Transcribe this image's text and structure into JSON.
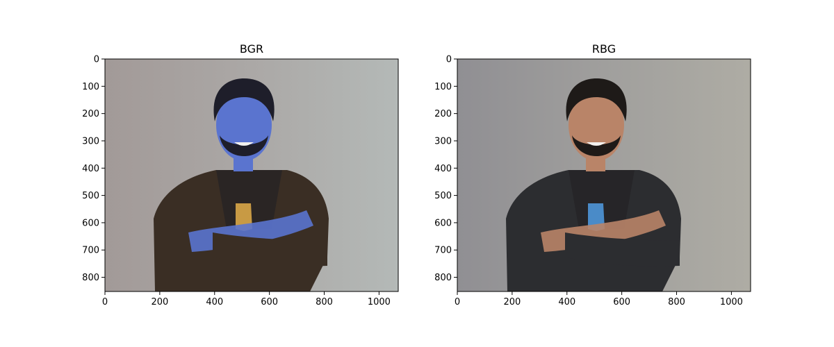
{
  "figure": {
    "panels": [
      {
        "title": "BGR",
        "image": "bgr-channel-swapped-photo",
        "x_ticks": [
          "0",
          "200",
          "400",
          "600",
          "800",
          "1000"
        ],
        "y_ticks": [
          "0",
          "100",
          "200",
          "300",
          "400",
          "500",
          "600",
          "700",
          "800"
        ],
        "x_range": [
          0,
          1070
        ],
        "y_range": [
          0,
          852
        ],
        "colors": {
          "background": "#a8aaa6",
          "skin": "#5a74cf",
          "hair": "#1e1e2a",
          "jacket": "#3a2e24",
          "shirt": "#2a2524",
          "logo": "#c89a44"
        }
      },
      {
        "title": "RBG",
        "image": "rgb-photo",
        "x_ticks": [
          "0",
          "200",
          "400",
          "600",
          "800",
          "1000"
        ],
        "y_ticks": [
          "0",
          "100",
          "200",
          "300",
          "400",
          "500",
          "600",
          "700",
          "800"
        ],
        "x_range": [
          0,
          1070
        ],
        "y_range": [
          0,
          852
        ],
        "colors": {
          "background": "#a09e99",
          "skin": "#b98468",
          "hair": "#1e1a18",
          "jacket": "#2c2d30",
          "shirt": "#262528",
          "logo": "#4a8bc8"
        }
      }
    ]
  }
}
